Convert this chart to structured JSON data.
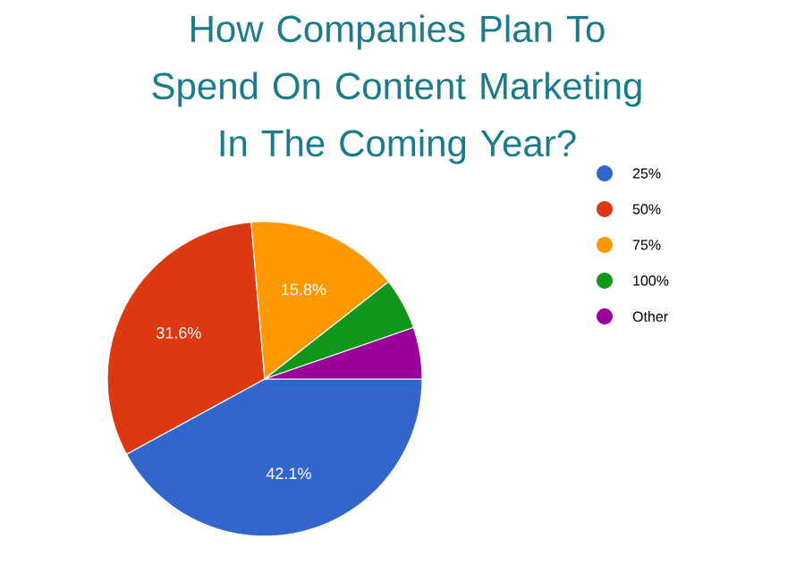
{
  "chart_data": {
    "type": "pie",
    "title": "How Companies Plan To Spend On Content Marketing In The Coming Year?",
    "categories": [
      "25%",
      "50%",
      "75%",
      "100%",
      "Other"
    ],
    "values": [
      42.1,
      31.6,
      15.8,
      5.3,
      5.3
    ],
    "colors": [
      "#3366cc",
      "#dc3912",
      "#ff9900",
      "#109618",
      "#990099"
    ],
    "value_labels": [
      "42.1%",
      "31.6%",
      "15.8%",
      null,
      null
    ],
    "legend": "right"
  }
}
